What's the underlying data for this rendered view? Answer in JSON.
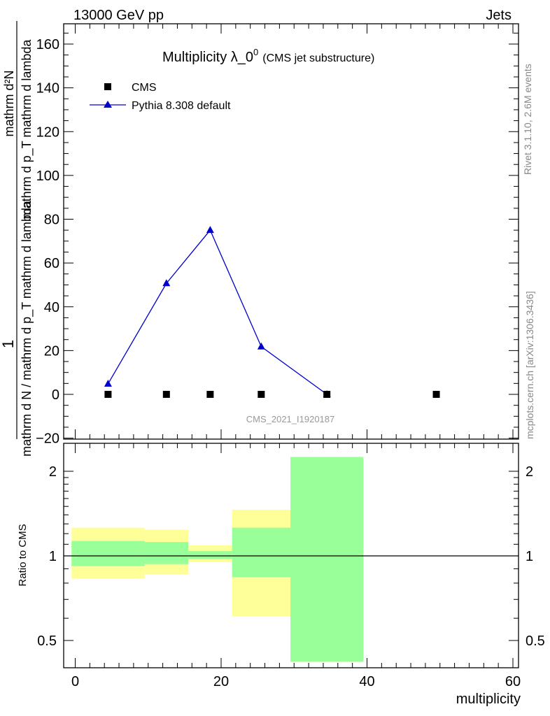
{
  "header": {
    "left": "13000 GeV pp",
    "right": "Jets"
  },
  "chart_data": [
    {
      "type": "line",
      "title": "Multiplicity λ_0",
      "title_sup": "0",
      "title_suffix": "(CMS jet substructure)",
      "ylabel_top": "1",
      "ylabel_bottom": "mathrm d N / mathrm d p_T mathrm d lambda",
      "ylabel_numerator": "mathrm d²N",
      "ylabel_denominator": "mathrm d p_T mathrm d lambda",
      "ylim": [
        -22,
        170
      ],
      "yticks": [
        -20,
        0,
        20,
        40,
        60,
        80,
        100,
        120,
        140,
        160
      ],
      "xlim": [
        -2,
        61
      ],
      "legend_position": "top-left",
      "series": [
        {
          "name": "CMS",
          "marker": "square",
          "color": "#000000",
          "x": [
            4.5,
            12.5,
            18.5,
            25.5,
            34.5,
            49.5
          ],
          "y": [
            0,
            0,
            0,
            0,
            0,
            0
          ]
        },
        {
          "name": "Pythia 8.308 default",
          "marker": "triangle",
          "color": "#0000cc",
          "x": [
            4.5,
            12.5,
            18.5,
            25.5,
            34.5
          ],
          "y": [
            4.8,
            50.7,
            75.0,
            21.8,
            0.0
          ]
        }
      ],
      "watermark": "CMS_2021_I1920187",
      "side_text_top": "Rivet 3.1.10,  2.6M events",
      "side_text_bottom": "mcplots.cern.ch [arXiv:1306.3436]"
    },
    {
      "type": "area",
      "ylabel": "Ratio to CMS",
      "xlabel": "multiplicity",
      "ylim": [
        0.42,
        2.25
      ],
      "y_scale": "log",
      "yticks": [
        0.5,
        1,
        2
      ],
      "ytick_labels": [
        "0.5",
        "1",
        "2"
      ],
      "xticks": [
        0,
        20,
        40,
        60
      ],
      "xtick_labels": [
        "0",
        "20",
        "40",
        "60"
      ],
      "reference_line": 1,
      "bands": [
        {
          "x0": -0.5,
          "x1": 9.5,
          "yellow": [
            0.83,
            1.26
          ],
          "green": [
            0.92,
            1.13
          ]
        },
        {
          "x0": 9.5,
          "x1": 15.5,
          "yellow": [
            0.86,
            1.24
          ],
          "green": [
            0.935,
            1.12
          ]
        },
        {
          "x0": 15.5,
          "x1": 21.5,
          "yellow": [
            0.95,
            1.09
          ],
          "green": [
            0.975,
            1.04
          ]
        },
        {
          "x0": 21.5,
          "x1": 29.5,
          "yellow": [
            0.61,
            1.46
          ],
          "green": [
            0.84,
            1.26
          ]
        },
        {
          "x0": 29.5,
          "x1": 39.5,
          "yellow": [
            0.42,
            2.25
          ],
          "green": [
            0.42,
            2.25
          ]
        }
      ],
      "colors": {
        "yellow": "#ffff99",
        "green": "#99ff99"
      }
    }
  ]
}
